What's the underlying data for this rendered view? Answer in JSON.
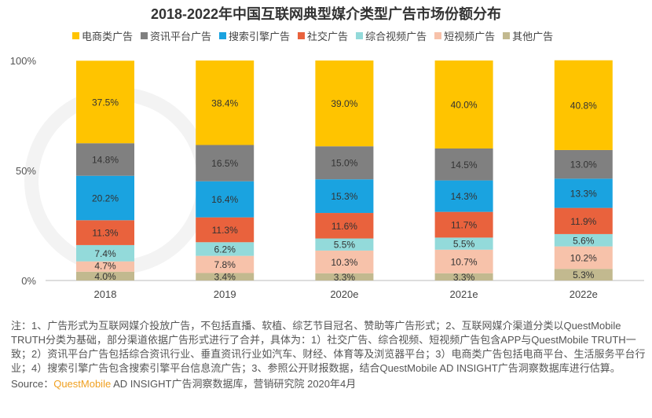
{
  "chart_data": {
    "type": "bar",
    "stacked": true,
    "title": "2018-2022年中国互联网典型媒介类型广告市场份额分布",
    "categories": [
      "2018",
      "2019",
      "2020e",
      "2021e",
      "2022e"
    ],
    "yticks": [
      "0%",
      "50%",
      "100%"
    ],
    "ylim": [
      0,
      100
    ],
    "legend_position": "top",
    "grid": false,
    "series": [
      {
        "name": "其他广告",
        "color": "#C2B98F",
        "values": [
          4.0,
          3.4,
          3.3,
          3.3,
          5.3
        ]
      },
      {
        "name": "短视频广告",
        "color": "#F7C2AA",
        "values": [
          4.7,
          7.8,
          10.3,
          10.7,
          10.2
        ]
      },
      {
        "name": "综合视频广告",
        "color": "#93DADA",
        "values": [
          7.4,
          6.2,
          5.5,
          5.5,
          5.6
        ]
      },
      {
        "name": "社交广告",
        "color": "#E9623D",
        "values": [
          11.3,
          11.3,
          11.6,
          11.7,
          11.9
        ]
      },
      {
        "name": "搜索引擎广告",
        "color": "#1AA3E0",
        "values": [
          20.2,
          16.4,
          15.3,
          14.3,
          13.3
        ]
      },
      {
        "name": "资讯平台广告",
        "color": "#808080",
        "values": [
          14.8,
          16.5,
          15.0,
          14.5,
          13.0
        ]
      },
      {
        "name": "电商类广告",
        "color": "#FFC400",
        "values": [
          37.5,
          38.4,
          39.0,
          40.0,
          40.8
        ]
      }
    ],
    "legend_order": [
      6,
      5,
      4,
      3,
      2,
      1,
      0
    ]
  },
  "notes": "注：1、广告形式为互联网媒介投放广告，不包括直播、软植、综艺节目冠名、赞助等广告形式；2、互联网媒介渠道分类以QuestMobile TRUTH分类为基础，部分渠道依据广告形式进行了合并，具体为：1）社交广告、综合视频、短视频广告包含APP与QuestMobile TRUTH一致；2）资讯平台广告包括综合资讯行业、垂直资讯行业如汽车、财经、体育等及浏览器平台；3）电商类广告包括电商平台、生活服务平台行业；4）搜索引擎广告包含搜索引擎平台信息流广告；3、参照公开财报数据，结合QuestMobile AD INSIGHT广告洞察数据库进行估算。",
  "source": {
    "label": "Source：",
    "brand": "QuestMobile",
    "text": " AD INSIGHT广告洞察数据库，营销研究院 2020年4月"
  },
  "watermark": "QUEST MOBILE"
}
